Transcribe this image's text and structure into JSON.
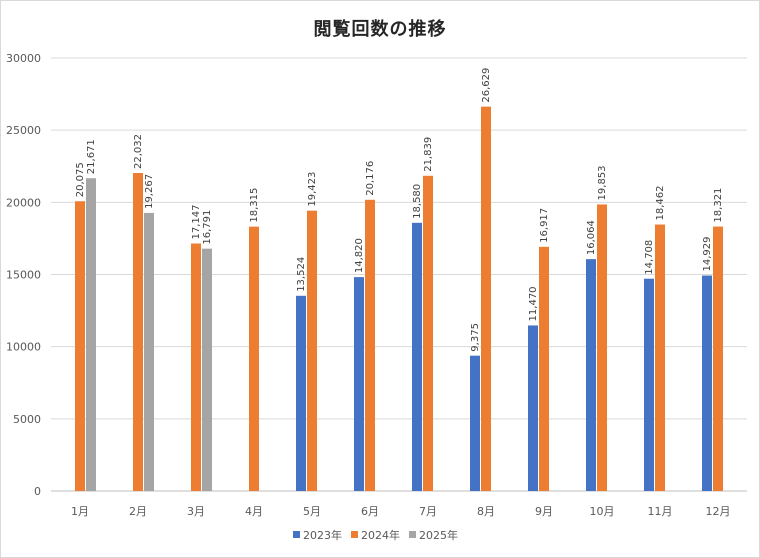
{
  "chart_data": {
    "type": "bar",
    "title": "閲覧回数の推移",
    "categories": [
      "1月",
      "2月",
      "3月",
      "4月",
      "5月",
      "6月",
      "7月",
      "8月",
      "9月",
      "10月",
      "11月",
      "12月"
    ],
    "series": [
      {
        "name": "2023年",
        "color": "#4472C4",
        "values": [
          null,
          null,
          null,
          null,
          13524,
          14820,
          18580,
          9375,
          11470,
          16064,
          14708,
          14929
        ],
        "labels": [
          "",
          "",
          "",
          "",
          "13,524",
          "14,820",
          "18,580",
          "9,375",
          "11,470",
          "16,064",
          "14,708",
          "14,929"
        ]
      },
      {
        "name": "2024年",
        "color": "#ED7D31",
        "values": [
          20075,
          22032,
          17147,
          18315,
          19423,
          20176,
          21839,
          26629,
          16917,
          19853,
          18462,
          18321
        ],
        "labels": [
          "20,075",
          "22,032",
          "17,147",
          "18,315",
          "19,423",
          "20,176",
          "21,839",
          "26,629",
          "16,917",
          "19,853",
          "18,462",
          "18,321"
        ]
      },
      {
        "name": "2025年",
        "color": "#A5A5A5",
        "values": [
          21671,
          19267,
          16791,
          null,
          null,
          null,
          null,
          null,
          null,
          null,
          null,
          null
        ],
        "labels": [
          "21,671",
          "19,267",
          "16,791",
          "",
          "",
          "",
          "",
          "",
          "",
          "",
          "",
          ""
        ]
      }
    ],
    "ylim": [
      0,
      30000
    ],
    "yticks": [
      0,
      5000,
      10000,
      15000,
      20000,
      25000,
      30000
    ],
    "grid": true,
    "legend": "bottom",
    "xlabel": "",
    "ylabel": ""
  }
}
